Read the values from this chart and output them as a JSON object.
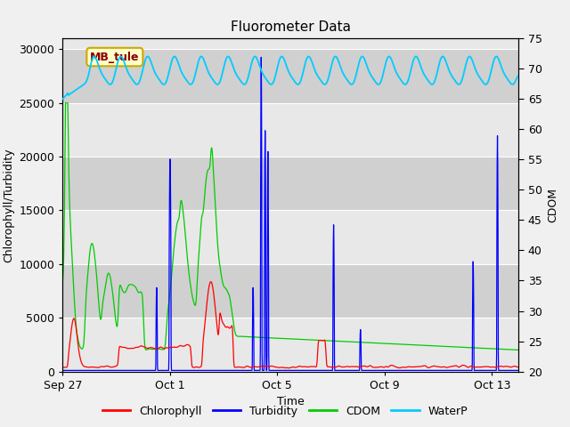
{
  "title": "Fluorometer Data",
  "xlabel": "Time",
  "ylabel_left": "Chlorophyll/Turbidity",
  "ylabel_right": "CDOM",
  "ylim_left": [
    0,
    31000
  ],
  "ylim_right": [
    20,
    75
  ],
  "yticks_left": [
    0,
    5000,
    10000,
    15000,
    20000,
    25000,
    30000
  ],
  "yticks_right": [
    20,
    25,
    30,
    35,
    40,
    45,
    50,
    55,
    60,
    65,
    70,
    75
  ],
  "xtick_labels": [
    "Sep 27",
    "Oct 1",
    "Oct 5",
    "Oct 9",
    "Oct 13"
  ],
  "xtick_positions": [
    0,
    4,
    8,
    12,
    16
  ],
  "colors": {
    "Chlorophyll": "#ff0000",
    "Turbidity": "#0000ff",
    "CDOM": "#00cc00",
    "WaterP": "#00ccff"
  },
  "legend_labels": [
    "Chlorophyll",
    "Turbidity",
    "CDOM",
    "WaterP"
  ],
  "annotation_text": "MB_tule",
  "fig_bg_color": "#f0f0f0",
  "plot_bg_light": "#e8e8e8",
  "plot_bg_dark": "#d0d0d0",
  "title_fontsize": 11,
  "axis_fontsize": 9,
  "tick_fontsize": 9,
  "figsize": [
    6.4,
    4.8
  ],
  "dpi": 100,
  "n_days": 17,
  "pts_per_day": 96
}
